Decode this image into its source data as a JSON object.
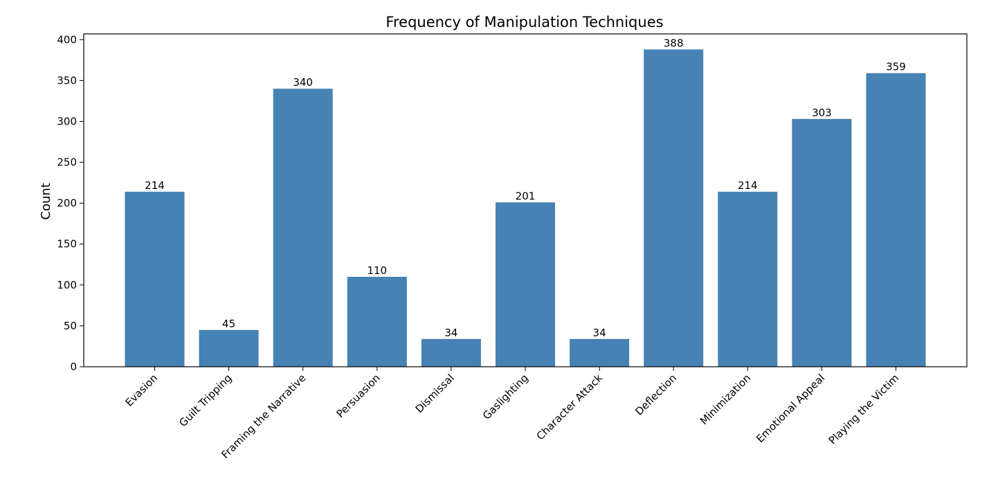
{
  "chart_data": {
    "type": "bar",
    "title": "Frequency of Manipulation Techniques",
    "xlabel": "",
    "ylabel": "Count",
    "categories": [
      "Evasion",
      "Guilt Tripping",
      "Framing the Narrative",
      "Persuasion",
      "Dismissal",
      "Gaslighting",
      "Character Attack",
      "Deflection",
      "Minimization",
      "Emotional Appeal",
      "Playing the Victim"
    ],
    "values": [
      214,
      45,
      340,
      110,
      34,
      201,
      34,
      388,
      214,
      303,
      359
    ],
    "ylim": [
      0,
      407
    ],
    "yticks": [
      0,
      50,
      100,
      150,
      200,
      250,
      300,
      350,
      400
    ],
    "bar_color": "#4682b4",
    "grid": false,
    "legend": "none"
  }
}
